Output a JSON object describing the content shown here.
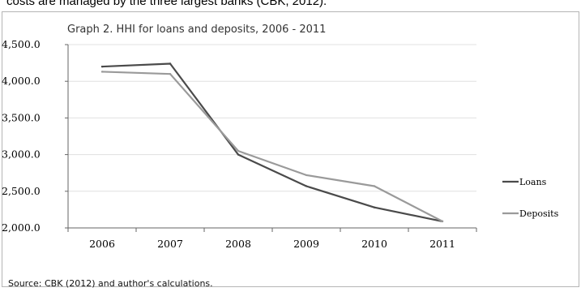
{
  "page_header_text": "costs are managed by the three largest banks (CBK, 2012).",
  "source_note": "Source:  CBK (2012) and author's calculations.",
  "chart_data": {
    "type": "line",
    "title": "Graph 2. HHI for loans and deposits, 2006 - 2011",
    "xlabel": "",
    "ylabel": "",
    "categories": [
      "2006",
      "2007",
      "2008",
      "2009",
      "2010",
      "2011"
    ],
    "ylim": [
      2000,
      4500
    ],
    "yticks": [
      2000,
      2500,
      3000,
      3500,
      4000,
      4500
    ],
    "ytick_labels": [
      "2,000.0",
      "2,500.0",
      "3,000.0",
      "3,500.0",
      "4,000.0",
      "4,500.0"
    ],
    "grid": "horizontal",
    "legend_position": "right",
    "series": [
      {
        "name": "Loans",
        "values": [
          4200,
          4240,
          3000,
          2570,
          2280,
          2090
        ],
        "color": "#4a4a4a"
      },
      {
        "name": "Deposits",
        "values": [
          4130,
          4100,
          3050,
          2720,
          2570,
          2090
        ],
        "color": "#9a9a9a"
      }
    ]
  }
}
